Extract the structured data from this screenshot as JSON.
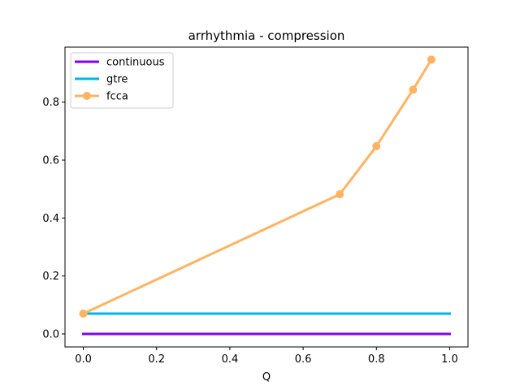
{
  "chart_data": {
    "type": "line",
    "title": "arrhythmia - compression",
    "xlabel": "Q",
    "ylabel": "",
    "xlim": [
      -0.05,
      1.05
    ],
    "ylim": [
      -0.045,
      0.99
    ],
    "xticks": [
      0.0,
      0.2,
      0.4,
      0.6,
      0.8,
      1.0
    ],
    "xtick_labels": [
      "0.0",
      "0.2",
      "0.4",
      "0.6",
      "0.8",
      "1.0"
    ],
    "yticks": [
      0.0,
      0.2,
      0.4,
      0.6,
      0.8
    ],
    "ytick_labels": [
      "0.0",
      "0.2",
      "0.4",
      "0.6",
      "0.8"
    ],
    "grid": false,
    "legend_position": "top-left",
    "series": [
      {
        "name": "continuous",
        "color": "#8000ff",
        "marker": "none",
        "x": [
          0.0,
          1.0
        ],
        "y": [
          0.0,
          0.0
        ]
      },
      {
        "name": "gtre",
        "color": "#00b5eb",
        "marker": "none",
        "x": [
          0.0,
          1.0
        ],
        "y": [
          0.07,
          0.07
        ]
      },
      {
        "name": "fcca",
        "color": "#ffb360",
        "marker": "circle",
        "x": [
          0.0,
          0.7,
          0.8,
          0.9,
          0.95
        ],
        "y": [
          0.07,
          0.482,
          0.648,
          0.843,
          0.947
        ]
      }
    ]
  }
}
